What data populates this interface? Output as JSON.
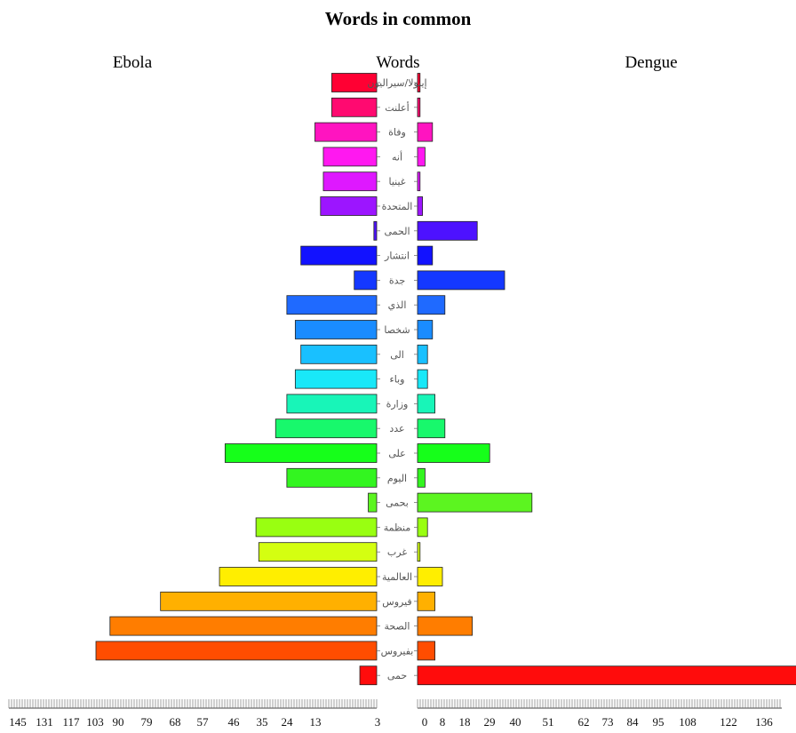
{
  "chart_data": {
    "type": "bar",
    "title": "Words in common",
    "left_label": "Ebola",
    "center_label": "Words",
    "right_label": "Dengue",
    "categories": [
      "إيبولا/سيراليون",
      "أعلنت",
      "وفاة",
      "أنه",
      "غينيا",
      "المتحدة",
      "الحمى",
      "انتشار",
      "جدة",
      "الذي",
      "شخصا",
      "الى",
      "وباء",
      "وزارة",
      "عدد",
      "على",
      "اليوم",
      "بحمى",
      "منظمة",
      "غرب",
      "العالمية",
      "فيروس",
      "الصحة",
      "بفيروس",
      "حمى"
    ],
    "series": [
      {
        "name": "Ebola",
        "values": [
          16,
          16,
          22,
          19,
          19,
          20,
          1,
          27,
          8,
          32,
          29,
          27,
          29,
          32,
          36,
          54,
          32,
          3,
          43,
          42,
          56,
          77,
          95,
          100,
          6
        ]
      },
      {
        "name": "Dengue",
        "values": [
          1,
          1,
          6,
          3,
          1,
          2,
          24,
          6,
          35,
          11,
          6,
          4,
          4,
          7,
          11,
          29,
          3,
          46,
          4,
          1,
          10,
          7,
          22,
          7,
          153
        ]
      }
    ],
    "colors": [
      "#ff0033",
      "#ff0a70",
      "#ff14c0",
      "#ff18f0",
      "#de18ff",
      "#9c15ff",
      "#4d12ff",
      "#1212ff",
      "#1438ff",
      "#1f6aff",
      "#1a8cff",
      "#19c0ff",
      "#19e8f8",
      "#18f5b8",
      "#18f86c",
      "#16ff1a",
      "#33f520",
      "#5cf520",
      "#99ff11",
      "#d4ff11",
      "#ffee00",
      "#ffb000",
      "#ff7d00",
      "#ff4d00",
      "#ff0c0c"
    ],
    "left_ticks": [
      "145",
      "131",
      "117",
      "103",
      "90",
      "79",
      "68",
      "57",
      "46",
      "35",
      "24",
      "13",
      "3"
    ],
    "right_ticks": [
      "0",
      "8",
      "18",
      "29",
      "40",
      "51",
      "62",
      "73",
      "84",
      "95",
      "108",
      "122",
      "136"
    ]
  }
}
